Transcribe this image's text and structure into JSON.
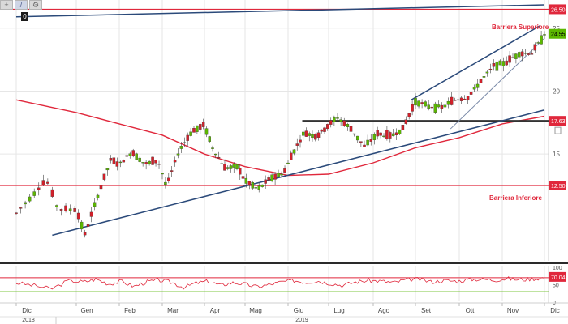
{
  "toolbar": {
    "buttons": [
      {
        "icon": "plus-icon",
        "glyph": "+"
      },
      {
        "icon": "draw-line-icon",
        "glyph": "/"
      },
      {
        "icon": "settings-icon",
        "glyph": "⚙"
      }
    ],
    "badge": "0"
  },
  "colors": {
    "up": "#5cb800",
    "down": "#d2202a",
    "ma": "#e0283c",
    "trend": "#2b4a7a",
    "horizontal_red": "#e0283c",
    "horizontal_dark": "#333333",
    "rsi": "#e0283c",
    "rsi_upper": "#e0283c",
    "rsi_lower": "#55b500"
  },
  "annotations": {
    "upper_barrier": "Barriera Superiore",
    "lower_barrier": "Barriera Inferiore"
  },
  "badges": {
    "upper": "26.50",
    "last_price": "24.55",
    "mid": "17.6375",
    "lower": "12.50",
    "rsi": "70.0421"
  },
  "rsi_ticks": [
    "100",
    "50",
    "0"
  ],
  "chart_data": {
    "type": "candlestick",
    "x_axis": {
      "months": [
        "Dic",
        "Gen",
        "Feb",
        "Mar",
        "Apr",
        "Mag",
        "Giu",
        "Lug",
        "Ago",
        "Set",
        "Ott",
        "Nov",
        "Dic"
      ],
      "years": [
        "2018",
        "2019"
      ]
    },
    "y_axis": {
      "ticks": [
        15,
        20,
        25
      ],
      "range": [
        7.5,
        27.5
      ],
      "position": "right"
    },
    "horizontal_levels": [
      {
        "value": 26.5,
        "role": "upper barrier",
        "label": "Barriera Superiore"
      },
      {
        "value": 12.5,
        "role": "lower barrier",
        "label": "Barriera Inferiore"
      },
      {
        "value": 17.6375,
        "role": "support line"
      }
    ],
    "last_price": 24.55,
    "moving_average": [
      {
        "month": 0,
        "value": 19.3
      },
      {
        "month": 1,
        "value": 18.3
      },
      {
        "month": 2,
        "value": 17.4
      },
      {
        "month": 3,
        "value": 16.5
      },
      {
        "month": 4,
        "value": 15.0
      },
      {
        "month": 5,
        "value": 14.0
      },
      {
        "month": 6,
        "value": 13.3
      },
      {
        "month": 7,
        "value": 13.4
      },
      {
        "month": 8,
        "value": 14.3
      },
      {
        "month": 9,
        "value": 15.5
      },
      {
        "month": 10,
        "value": 16.3
      },
      {
        "month": 11,
        "value": 17.4
      },
      {
        "month": 12,
        "value": 18.0
      }
    ],
    "trendlines": [
      {
        "start": {
          "month": 0,
          "value": 25.9
        },
        "end": {
          "month": 12,
          "value": 26.85
        },
        "note": "upper long-term trendline"
      },
      {
        "start": {
          "month": 0.6,
          "value": 8.55
        },
        "end": {
          "month": 12,
          "value": 18.5
        },
        "note": "rising support trendline"
      },
      {
        "start": {
          "month": 8.9,
          "value": 19.3
        },
        "end": {
          "month": 11.9,
          "value": 25.2
        },
        "note": "upper channel line"
      },
      {
        "start": {
          "month": 9.8,
          "value": 17.0
        },
        "end": {
          "month": 12,
          "value": 24.2
        },
        "note": "lower channel line"
      }
    ],
    "support_line": {
      "start_month": 6.35,
      "value": 17.6375
    },
    "price_series": [
      {
        "m": 0.0,
        "c": 10.3
      },
      {
        "m": 0.5,
        "c": 13.0
      },
      {
        "m": 0.7,
        "c": 10.6
      },
      {
        "m": 1.0,
        "c": 10.6
      },
      {
        "m": 1.2,
        "c": 8.6
      },
      {
        "m": 1.5,
        "c": 11.7
      },
      {
        "m": 1.8,
        "c": 14.5
      },
      {
        "m": 2.0,
        "c": 14.2
      },
      {
        "m": 2.3,
        "c": 15.2
      },
      {
        "m": 2.6,
        "c": 14.2
      },
      {
        "m": 2.9,
        "c": 14.5
      },
      {
        "m": 3.1,
        "c": 12.4
      },
      {
        "m": 3.4,
        "c": 15.3
      },
      {
        "m": 3.7,
        "c": 16.8
      },
      {
        "m": 4.0,
        "c": 17.3
      },
      {
        "m": 4.2,
        "c": 15.5
      },
      {
        "m": 4.5,
        "c": 13.9
      },
      {
        "m": 4.8,
        "c": 14.0
      },
      {
        "m": 5.0,
        "c": 12.9
      },
      {
        "m": 5.3,
        "c": 12.2
      },
      {
        "m": 5.6,
        "c": 13.1
      },
      {
        "m": 5.9,
        "c": 13.5
      },
      {
        "m": 6.1,
        "c": 15.0
      },
      {
        "m": 6.4,
        "c": 16.7
      },
      {
        "m": 6.7,
        "c": 16.4
      },
      {
        "m": 6.9,
        "c": 17.0
      },
      {
        "m": 7.2,
        "c": 17.9
      },
      {
        "m": 7.5,
        "c": 17.0
      },
      {
        "m": 7.8,
        "c": 15.6
      },
      {
        "m": 8.1,
        "c": 16.6
      },
      {
        "m": 8.4,
        "c": 16.4
      },
      {
        "m": 8.7,
        "c": 17.0
      },
      {
        "m": 9.0,
        "c": 19.2
      },
      {
        "m": 9.3,
        "c": 18.8
      },
      {
        "m": 9.6,
        "c": 18.7
      },
      {
        "m": 9.9,
        "c": 19.3
      },
      {
        "m": 10.2,
        "c": 19.5
      },
      {
        "m": 10.5,
        "c": 20.8
      },
      {
        "m": 10.8,
        "c": 22.0
      },
      {
        "m": 11.1,
        "c": 22.3
      },
      {
        "m": 11.4,
        "c": 23.0
      },
      {
        "m": 11.7,
        "c": 23.0
      },
      {
        "m": 12.0,
        "c": 24.55
      }
    ],
    "rsi": {
      "ticks": [
        0,
        50,
        100
      ],
      "upper_band": 70,
      "lower_band": 30,
      "last": 70.0421,
      "values": [
        55,
        48,
        38,
        62,
        58,
        66,
        52,
        60,
        45,
        58,
        63,
        57,
        42,
        55,
        60,
        48,
        56,
        52,
        44,
        50,
        58,
        62,
        57,
        61,
        54,
        48,
        58,
        62,
        60,
        56,
        64,
        66,
        58,
        62,
        60,
        65,
        66,
        63,
        68,
        64,
        67,
        70
      ]
    }
  }
}
